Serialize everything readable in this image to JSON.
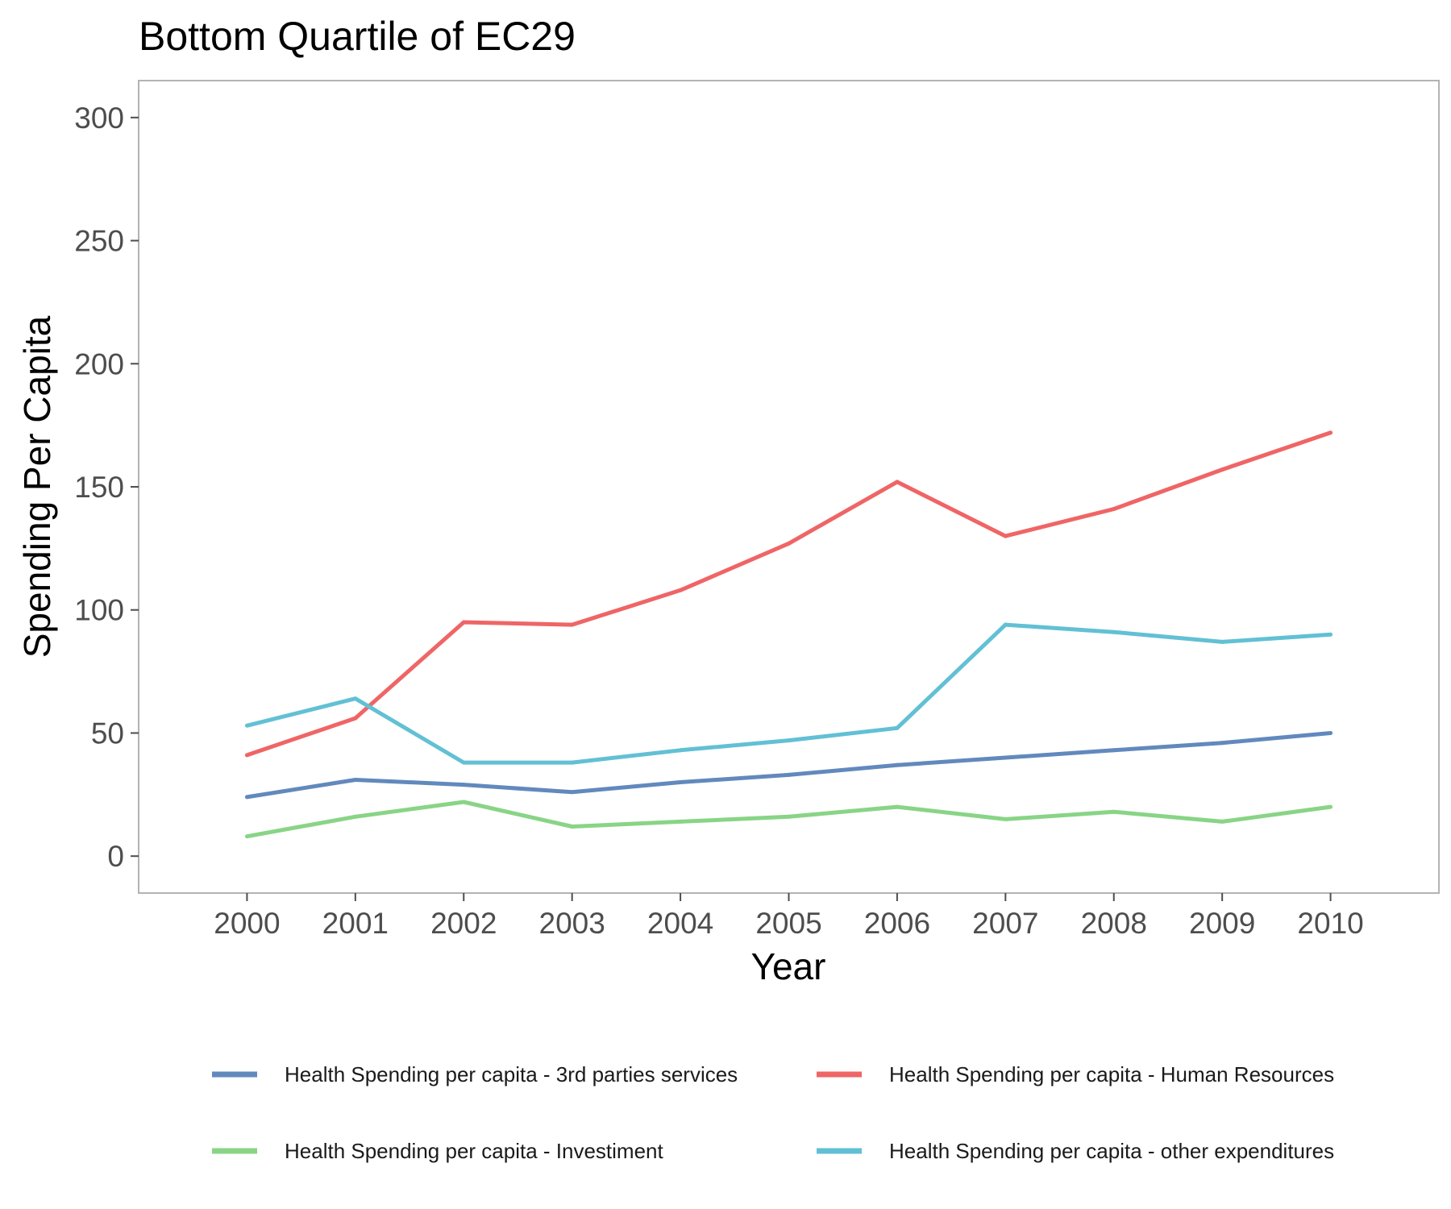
{
  "chart_data": {
    "type": "line",
    "title": "Bottom Quartile of EC29",
    "xlabel": "Year",
    "ylabel": "Spending Per Capita",
    "x": [
      2000,
      2001,
      2002,
      2003,
      2004,
      2005,
      2006,
      2007,
      2008,
      2009,
      2010
    ],
    "xlim": [
      1999,
      2011
    ],
    "ylim": [
      -15,
      315
    ],
    "yticks": [
      0,
      50,
      100,
      150,
      200,
      250,
      300
    ],
    "grid": false,
    "legend_position": "bottom",
    "series": [
      {
        "name": "Health Spending per capita - 3rd parties services",
        "color": "#6289bd",
        "values": [
          24,
          31,
          29,
          26,
          30,
          33,
          37,
          40,
          43,
          46,
          50
        ]
      },
      {
        "name": "Health Spending per capita - Human Resources",
        "color": "#ef6566",
        "values": [
          41,
          56,
          95,
          94,
          108,
          127,
          152,
          130,
          141,
          157,
          172
        ]
      },
      {
        "name": "Health Spending per capita - Investiment",
        "color": "#89d486",
        "values": [
          8,
          16,
          22,
          12,
          14,
          16,
          20,
          15,
          18,
          14,
          20
        ]
      },
      {
        "name": "Health Spending per capita - other expenditures",
        "color": "#62c0d4",
        "values": [
          53,
          64,
          38,
          38,
          43,
          47,
          52,
          94,
          91,
          87,
          90
        ]
      }
    ]
  }
}
